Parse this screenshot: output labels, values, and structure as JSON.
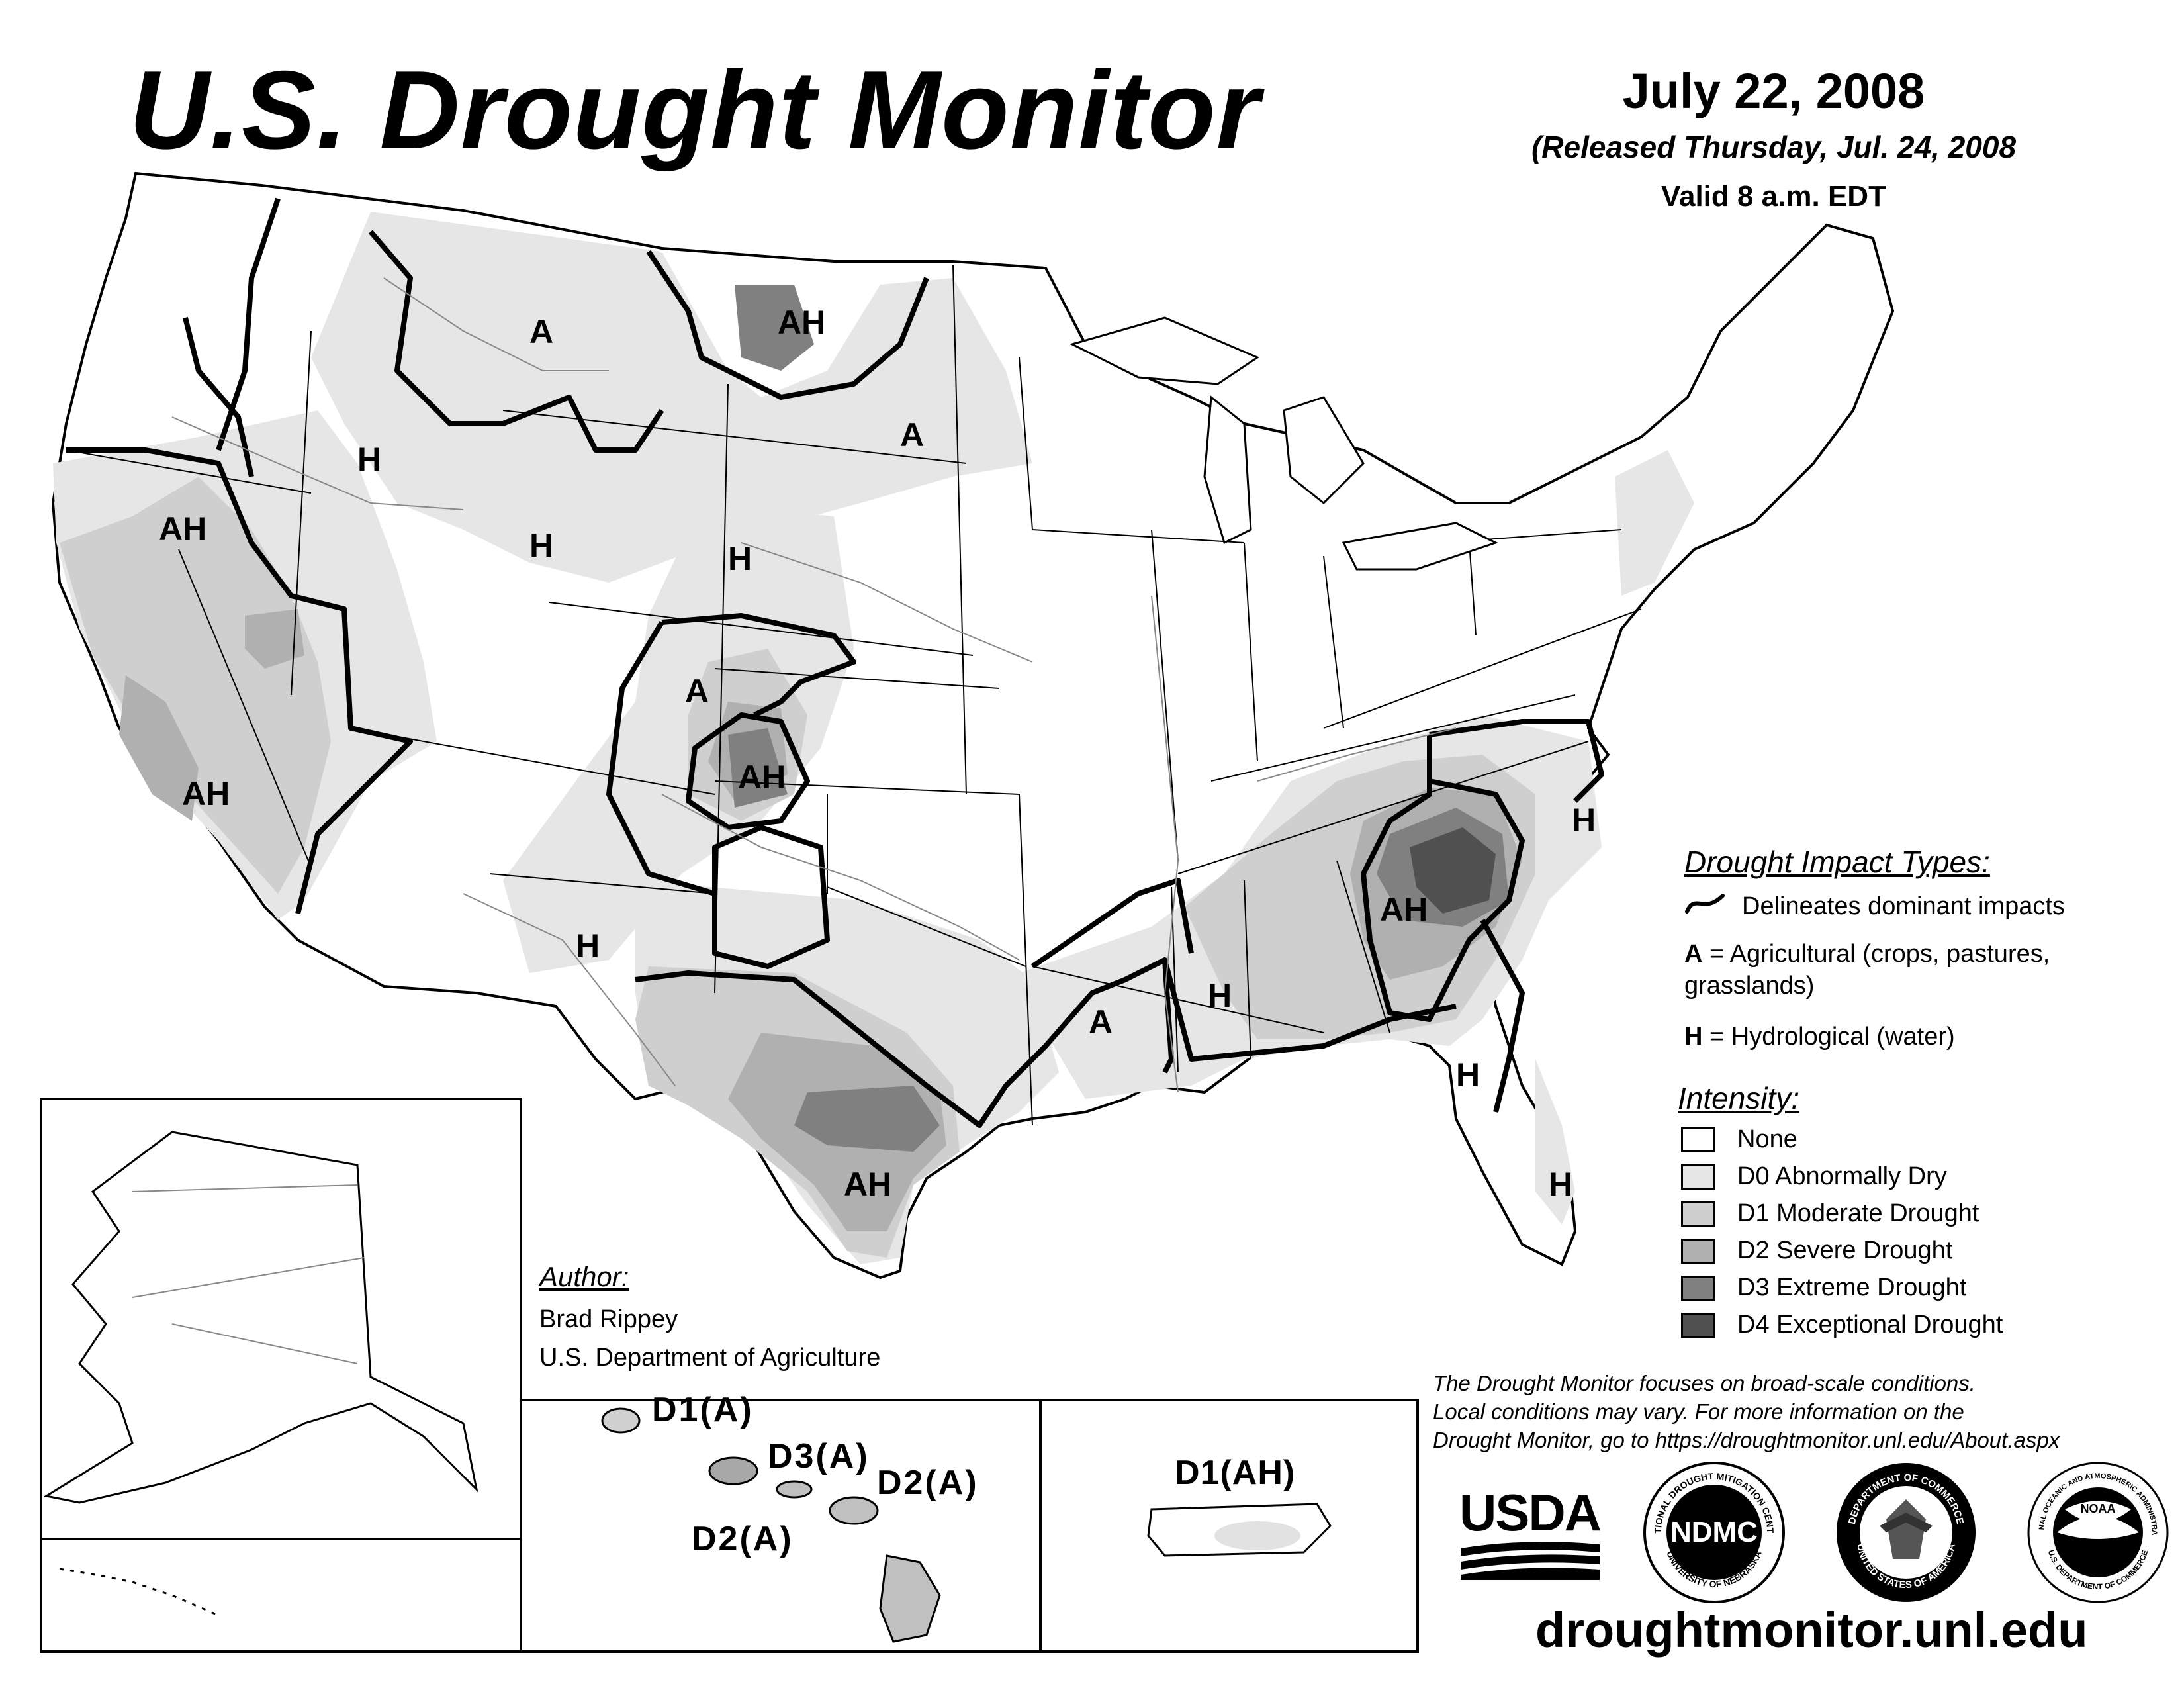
{
  "header": {
    "title": "U.S. Drought Monitor",
    "date": "July 22, 2008",
    "released": "(Released Thursday, Jul. 24, 2008",
    "valid": "Valid 8 a.m. EDT"
  },
  "map_labels": {
    "montana_a": "A",
    "nd_ah": "AH",
    "idaho_h": "H",
    "sd_a": "A",
    "ca_north_ah": "AH",
    "wy_h": "H",
    "ne_h": "H",
    "co_a": "A",
    "co_ah": "AH",
    "ca_south_ah": "AH",
    "nm_h": "H",
    "tx_ah": "AH",
    "la_a": "A",
    "ms_h": "H",
    "ga_ah": "AH",
    "nc_h": "H",
    "fl_north_h": "H",
    "fl_south_h": "H"
  },
  "territories": {
    "hawaii_d1": "D1(A)",
    "hawaii_d3": "D3(A)",
    "hawaii_d2_east": "D2(A)",
    "hawaii_d2_south": "D2(A)",
    "puerto_rico": "D1(AH)"
  },
  "legend": {
    "impact_heading": "Drought Impact Types:",
    "delineates": "Delineates dominant impacts",
    "ag_key": "A",
    "ag_text": " = Agricultural (crops, pastures,",
    "ag_text2": "grasslands)",
    "hydro_key": "H",
    "hydro_text": " = Hydrological (water)",
    "intensity_heading": "Intensity:",
    "categories": [
      {
        "label": "None",
        "color": "#ffffff"
      },
      {
        "label": "D0 Abnormally Dry",
        "color": "#e6e6e6"
      },
      {
        "label": "D1 Moderate Drought",
        "color": "#cfcfcf"
      },
      {
        "label": "D2 Severe Drought",
        "color": "#b0b0b0"
      },
      {
        "label": "D3 Extreme Drought",
        "color": "#808080"
      },
      {
        "label": "D4 Exceptional Drought",
        "color": "#505050"
      }
    ]
  },
  "author": {
    "heading": "Author:",
    "name": "Brad Rippey",
    "org": "U.S. Department of Agriculture"
  },
  "disclaimer": {
    "line1": "The Drought Monitor focuses on broad-scale conditions.",
    "line2": "Local conditions may vary. For more information on the",
    "line3": "Drought Monitor, go to https://droughtmonitor.unl.edu/About.aspx"
  },
  "logos": {
    "usda": "USDA",
    "ndmc": "NDMC",
    "ndmc_ring_top": "NATIONAL DROUGHT MITIGATION CENTER",
    "ndmc_ring_bottom": "UNIVERSITY OF NEBRASKA",
    "doc_ring_top": "DEPARTMENT OF COMMERCE",
    "doc_ring_bottom": "UNITED STATES OF AMERICA",
    "noaa": "NOAA",
    "noaa_ring_top": "NATIONAL OCEANIC AND ATMOSPHERIC ADMINISTRATION",
    "noaa_ring_bottom": "U.S. DEPARTMENT OF COMMERCE"
  },
  "website": "droughtmonitor.unl.edu"
}
